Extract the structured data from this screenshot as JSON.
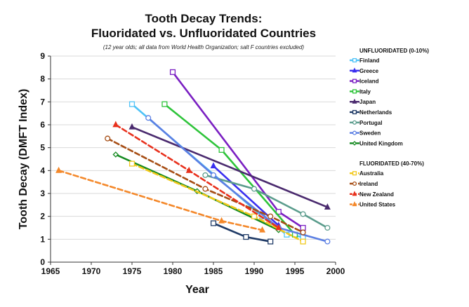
{
  "chart_data": {
    "type": "line",
    "title_line1": "Tooth Decay Trends:",
    "title_line2": "Fluoridated vs. Unfluoridated Countries",
    "subtitle": "(12 year olds; all data from World Health Organization; salt F countries excluded)",
    "xlabel": "Year",
    "ylabel": "Tooth Decay (DMFT Index)",
    "xlim": [
      1965,
      2000
    ],
    "ylim": [
      0,
      9
    ],
    "xticks": [
      "1965",
      "1970",
      "1975",
      "1980",
      "1985",
      "1990",
      "1995",
      "2000"
    ],
    "yticks": [
      "0",
      "1",
      "2",
      "3",
      "4",
      "5",
      "6",
      "7",
      "8",
      "9"
    ],
    "grid": true,
    "groups": [
      {
        "header": "UNFLUORIDATED (0-10%)",
        "dashed": false,
        "series": [
          {
            "name": "Finland",
            "color": "#4fc3f7",
            "marker": "square",
            "points": [
              [
                1975,
                6.9
              ],
              [
                1991,
                2.0
              ],
              [
                1994,
                1.2
              ],
              [
                1996,
                1.1
              ]
            ]
          },
          {
            "name": "Greece",
            "color": "#3a2ff0",
            "marker": "triangle",
            "points": [
              [
                1985,
                4.2
              ],
              [
                1993,
                1.6
              ]
            ]
          },
          {
            "name": "Iceland",
            "color": "#7a1fc2",
            "marker": "square",
            "points": [
              [
                1980,
                8.3
              ],
              [
                1993,
                2.2
              ],
              [
                1996,
                1.5
              ]
            ]
          },
          {
            "name": "Italy",
            "color": "#2ec43a",
            "marker": "square",
            "points": [
              [
                1979,
                6.9
              ],
              [
                1986,
                4.9
              ],
              [
                1995,
                1.2
              ]
            ]
          },
          {
            "name": "Japan",
            "color": "#4a2a6e",
            "marker": "triangle",
            "points": [
              [
                1975,
                5.9
              ],
              [
                1999,
                2.4
              ]
            ]
          },
          {
            "name": "Netherlands",
            "color": "#1f3a66",
            "marker": "square",
            "points": [
              [
                1985,
                1.7
              ],
              [
                1989,
                1.1
              ],
              [
                1992,
                0.9
              ]
            ]
          },
          {
            "name": "Portugal",
            "color": "#5a9c8c",
            "marker": "circle",
            "points": [
              [
                1984,
                3.8
              ],
              [
                1990,
                3.2
              ],
              [
                1996,
                2.1
              ],
              [
                1999,
                1.5
              ]
            ]
          },
          {
            "name": "Sweden",
            "color": "#5b7fe3",
            "marker": "circle",
            "points": [
              [
                1977,
                6.3
              ],
              [
                1985,
                3.8
              ],
              [
                1993,
                1.5
              ],
              [
                1999,
                0.9
              ]
            ]
          },
          {
            "name": "United Kingdom",
            "color": "#148a20",
            "marker": "diamond",
            "points": [
              [
                1973,
                4.7
              ],
              [
                1983,
                3.1
              ],
              [
                1993,
                1.4
              ]
            ]
          }
        ]
      },
      {
        "header": "FLUORIDATED (40-70%)",
        "dashed": true,
        "series": [
          {
            "name": "Australia",
            "color": "#f2c81a",
            "marker": "square",
            "points": [
              [
                1975,
                4.3
              ],
              [
                1990,
                2.0
              ],
              [
                1996,
                0.9
              ]
            ]
          },
          {
            "name": "Ireland",
            "color": "#a64d14",
            "marker": "circle",
            "points": [
              [
                1972,
                5.4
              ],
              [
                1984,
                3.2
              ],
              [
                1992,
                2.0
              ],
              [
                1996,
                1.3
              ]
            ]
          },
          {
            "name": "New Zealand",
            "color": "#e8301c",
            "marker": "triangle",
            "points": [
              [
                1973,
                6.0
              ],
              [
                1982,
                4.0
              ],
              [
                1993,
                1.5
              ]
            ]
          },
          {
            "name": "United States",
            "color": "#f4882a",
            "marker": "triangle",
            "points": [
              [
                1966,
                4.0
              ],
              [
                1986,
                1.8
              ],
              [
                1991,
                1.4
              ]
            ]
          }
        ]
      }
    ]
  }
}
